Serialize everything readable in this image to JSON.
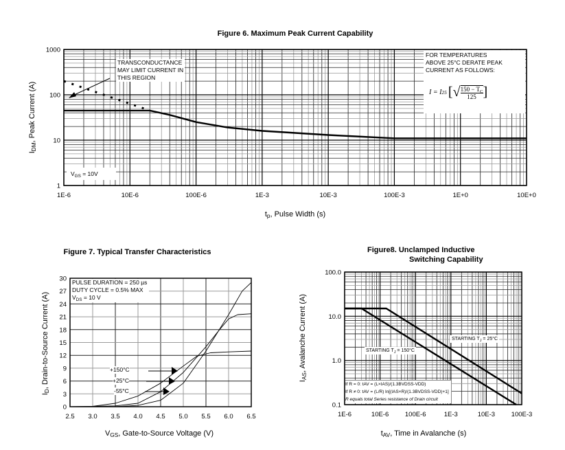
{
  "chart_data": [
    {
      "type": "line",
      "title": "Figure 6. Maximum Peak Current Capability",
      "xlabel": {
        "main": "t",
        "sub": "p",
        "rest": ", Pulse Width (s)"
      },
      "ylabel": {
        "main": "I",
        "sub": "DM",
        "rest": ", Peak Current (A)"
      },
      "xscale": "log",
      "yscale": "log",
      "xlim": [
        1e-06,
        10
      ],
      "ylim": [
        1,
        1000
      ],
      "xticks": [
        1e-06,
        1e-05,
        0.0001,
        0.001,
        0.01,
        0.1,
        1,
        10
      ],
      "xtick_labels": [
        "1E-6",
        "10E-6",
        "100E-6",
        "1E-3",
        "10E-3",
        "100E-3",
        "1E+0",
        "10E+0"
      ],
      "yticks": [
        1,
        10,
        100,
        1000
      ],
      "ytick_labels": [
        "1",
        "10",
        "100",
        "1000"
      ],
      "grid": true,
      "series": [
        {
          "style": "solid",
          "x": [
            1e-06,
            2e-05,
            4e-05,
            0.0001,
            0.0003,
            0.001,
            0.01,
            0.1,
            10
          ],
          "y": [
            45,
            45,
            36,
            25,
            19,
            16,
            13,
            11,
            11
          ]
        },
        {
          "style": "dotted",
          "x": [
            1e-06,
            2e-05
          ],
          "y": [
            200,
            45
          ]
        }
      ],
      "annotations": {
        "transconductance": [
          "TRANSCONDUCTANCE",
          "MAY LIMIT CURRENT IN",
          "THIS REGION"
        ],
        "derate": [
          "FOR TEMPERATURES",
          "ABOVE 25°C DERATE PEAK",
          "CURRENT AS FOLLOWS:"
        ],
        "formula": {
          "lhs": "I  =  I",
          "sub": "25",
          "num": "150 − T",
          "num_sub": "C",
          "den": "125"
        },
        "vgs": {
          "main": "V",
          "sub": "GS",
          "rest": " = 10V"
        }
      }
    },
    {
      "type": "line",
      "title": "Figure 7. Typical Transfer Characteristics",
      "xlabel": {
        "main": "V",
        "sub": "GS",
        "rest": ", Gate-to-Source Voltage (V)"
      },
      "ylabel": {
        "main": "I",
        "sub": "D",
        "rest": ", Drain-to-Source Current (A)"
      },
      "xlim": [
        2.5,
        6.5
      ],
      "ylim": [
        0,
        30
      ],
      "xticks": [
        2.5,
        3.0,
        3.5,
        4.0,
        4.5,
        5.0,
        5.5,
        6.0,
        6.5
      ],
      "xtick_labels": [
        "2.5",
        "3.0",
        "3.5",
        "4.0",
        "4.5",
        "5.0",
        "5.5",
        "6.0",
        "6.5"
      ],
      "yticks": [
        0,
        3,
        6,
        9,
        12,
        15,
        18,
        21,
        24,
        27,
        30
      ],
      "ytick_labels": [
        "0",
        "3",
        "6",
        "9",
        "12",
        "15",
        "18",
        "21",
        "24",
        "27",
        "30"
      ],
      "grid": true,
      "series": [
        {
          "name": "+150°C",
          "x": [
            2.5,
            3.0,
            3.5,
            4.0,
            4.5,
            5.0,
            5.3,
            5.6,
            6.0,
            6.5
          ],
          "y": [
            0,
            0.1,
            0.8,
            2.5,
            5.5,
            9.5,
            11.8,
            12.6,
            12.8,
            13
          ]
        },
        {
          "name": "+25°C",
          "x": [
            2.5,
            3.5,
            4.0,
            4.5,
            5.0,
            5.5,
            5.8,
            6.0,
            6.2,
            6.5
          ],
          "y": [
            0,
            0.2,
            0.8,
            3.5,
            8,
            14,
            18,
            20.5,
            21.5,
            21.7
          ]
        },
        {
          "name": "-55°C",
          "x": [
            2.5,
            3.5,
            4.0,
            4.5,
            5.0,
            5.5,
            6.0,
            6.3,
            6.5
          ],
          "y": [
            0,
            0,
            0.3,
            1.5,
            5.5,
            13,
            21.5,
            27,
            29
          ]
        }
      ],
      "annotations": {
        "pulse": "PULSE DURATION = 250 µs",
        "duty": "DUTY CYCLE = 0.5% MAX",
        "vds": {
          "main": "V",
          "sub": "DS",
          "rest": " = 10 V"
        }
      }
    },
    {
      "type": "line",
      "title": [
        "Figure8.   Unclamped Inductive",
        "Switching Capability"
      ],
      "xlabel": {
        "main": "t",
        "sub": "AV",
        "rest": ", Time in Avalanche (s)"
      },
      "ylabel": {
        "main": "I",
        "sub": "AS",
        "rest": ", Avalanche Current (A)"
      },
      "xscale": "log",
      "yscale": "log",
      "xlim": [
        1e-06,
        0.1
      ],
      "ylim": [
        0.1,
        100
      ],
      "xticks": [
        1e-06,
        1e-05,
        0.0001,
        0.001,
        0.01,
        0.1
      ],
      "xtick_labels": [
        "1E-6",
        "10E-6",
        "100E-6",
        "1E-3",
        "10E-3",
        "100E-3"
      ],
      "yticks": [
        0.1,
        1,
        10,
        100
      ],
      "ytick_labels": [
        "0.1",
        "1.0",
        "10.0",
        "100.0"
      ],
      "grid": true,
      "series": [
        {
          "name": "STARTING TJ = 25°C",
          "x": [
            1e-06,
            1.5e-05,
            0.1
          ],
          "y": [
            15,
            15,
            0.18
          ]
        },
        {
          "name": "STARTING TJ = 150°C",
          "x": [
            1e-06,
            3e-06,
            0.07
          ],
          "y": [
            15,
            15,
            0.1
          ]
        }
      ],
      "annotations": {
        "tj25": {
          "main": "STARTING T",
          "sub": "J",
          "rest": " = 25°C"
        },
        "tj150": {
          "main": "STARTING T",
          "sub": "J",
          "rest": " = 150°C"
        },
        "eq1": "If R = 0: tAV = (L×IAS)/(1.3BVDSS-VDD)",
        "eq2": "If R ≠ 0: tAV = (L/R) ln[(IAS×R)/(1.3BVDSS-VDD)+1]",
        "eq3": "R equals total Series resistance of Drain circuit"
      }
    }
  ]
}
